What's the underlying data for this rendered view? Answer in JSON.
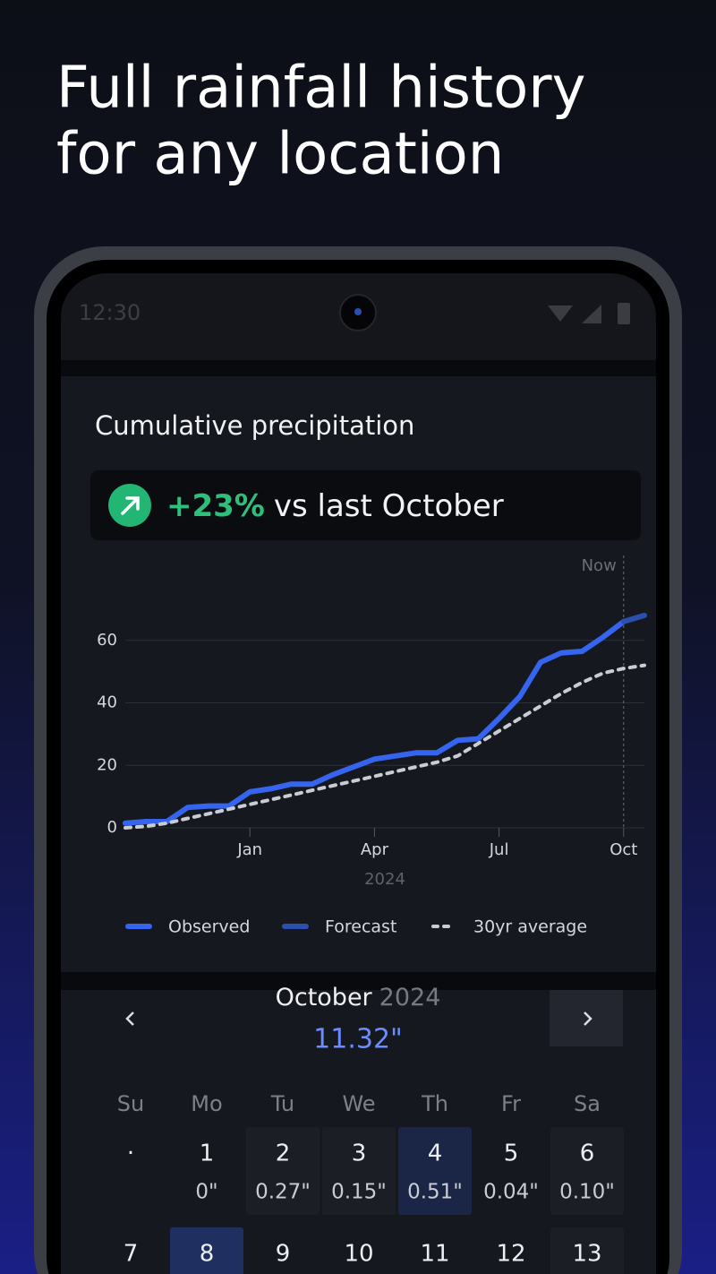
{
  "header": {
    "title_lines": [
      "Full rainfall history",
      "for any location"
    ]
  },
  "status_bar": {
    "time": "12:30"
  },
  "card": {
    "title": "Cumulative precipitation",
    "badge": {
      "change": "+23%",
      "text": "vs last October"
    }
  },
  "chart_data": {
    "type": "line",
    "categories": [
      null,
      null,
      null,
      null,
      null,
      null,
      "Jan",
      null,
      null,
      null,
      null,
      null,
      "Apr",
      null,
      null,
      null,
      null,
      null,
      "Jul",
      null,
      null,
      null,
      null,
      null,
      "Oct",
      null
    ],
    "series": [
      {
        "name": "Observed",
        "color": "#3565ee",
        "dash": false,
        "values": [
          1.5,
          2,
          2,
          6.5,
          7,
          7,
          11.5,
          12.5,
          14,
          14,
          17,
          19.5,
          22,
          23,
          24,
          24,
          28,
          28.5,
          35,
          42,
          53,
          56,
          56.5,
          61,
          66,
          null
        ]
      },
      {
        "name": "Forecast",
        "color": "#2a4fae",
        "dash": false,
        "values": [
          null,
          null,
          null,
          null,
          null,
          null,
          null,
          null,
          null,
          null,
          null,
          null,
          null,
          null,
          null,
          null,
          null,
          null,
          null,
          null,
          null,
          null,
          null,
          null,
          66,
          68
        ]
      },
      {
        "name": "30yr average",
        "color": "#c9ccd3",
        "dash": true,
        "values": [
          0,
          0.5,
          1.5,
          3,
          4.5,
          6,
          7.5,
          9,
          10.5,
          12,
          13.5,
          15,
          16.5,
          18,
          19.5,
          21,
          23,
          27,
          31,
          35,
          39,
          43,
          46.5,
          49.5,
          51,
          52
        ]
      }
    ],
    "ylim": [
      0,
      80
    ],
    "yticks": [
      0,
      20,
      40,
      60
    ],
    "grid": true,
    "x_label": "2024",
    "annotation": "Now"
  },
  "calendar": {
    "month": "October",
    "year": "2024",
    "total": "11.32\"",
    "weekdays": [
      "Su",
      "Mo",
      "Tu",
      "We",
      "Th",
      "Fr",
      "Sa"
    ],
    "weeks": [
      [
        {
          "day": "·"
        },
        {
          "day": 1,
          "amount": "0\""
        },
        {
          "day": 2,
          "amount": "0.27\"",
          "highlight": "soft"
        },
        {
          "day": 3,
          "amount": "0.15\"",
          "highlight": "soft"
        },
        {
          "day": 4,
          "amount": "0.51\"",
          "highlight": "strong"
        },
        {
          "day": 5,
          "amount": "0.04\""
        },
        {
          "day": 6,
          "amount": "0.10\"",
          "highlight": "soft"
        }
      ],
      [
        {
          "day": 7
        },
        {
          "day": 8,
          "highlight": "strong"
        },
        {
          "day": 9
        },
        {
          "day": 10
        },
        {
          "day": 11
        },
        {
          "day": 12
        },
        {
          "day": 13,
          "highlight": "soft"
        }
      ]
    ]
  }
}
